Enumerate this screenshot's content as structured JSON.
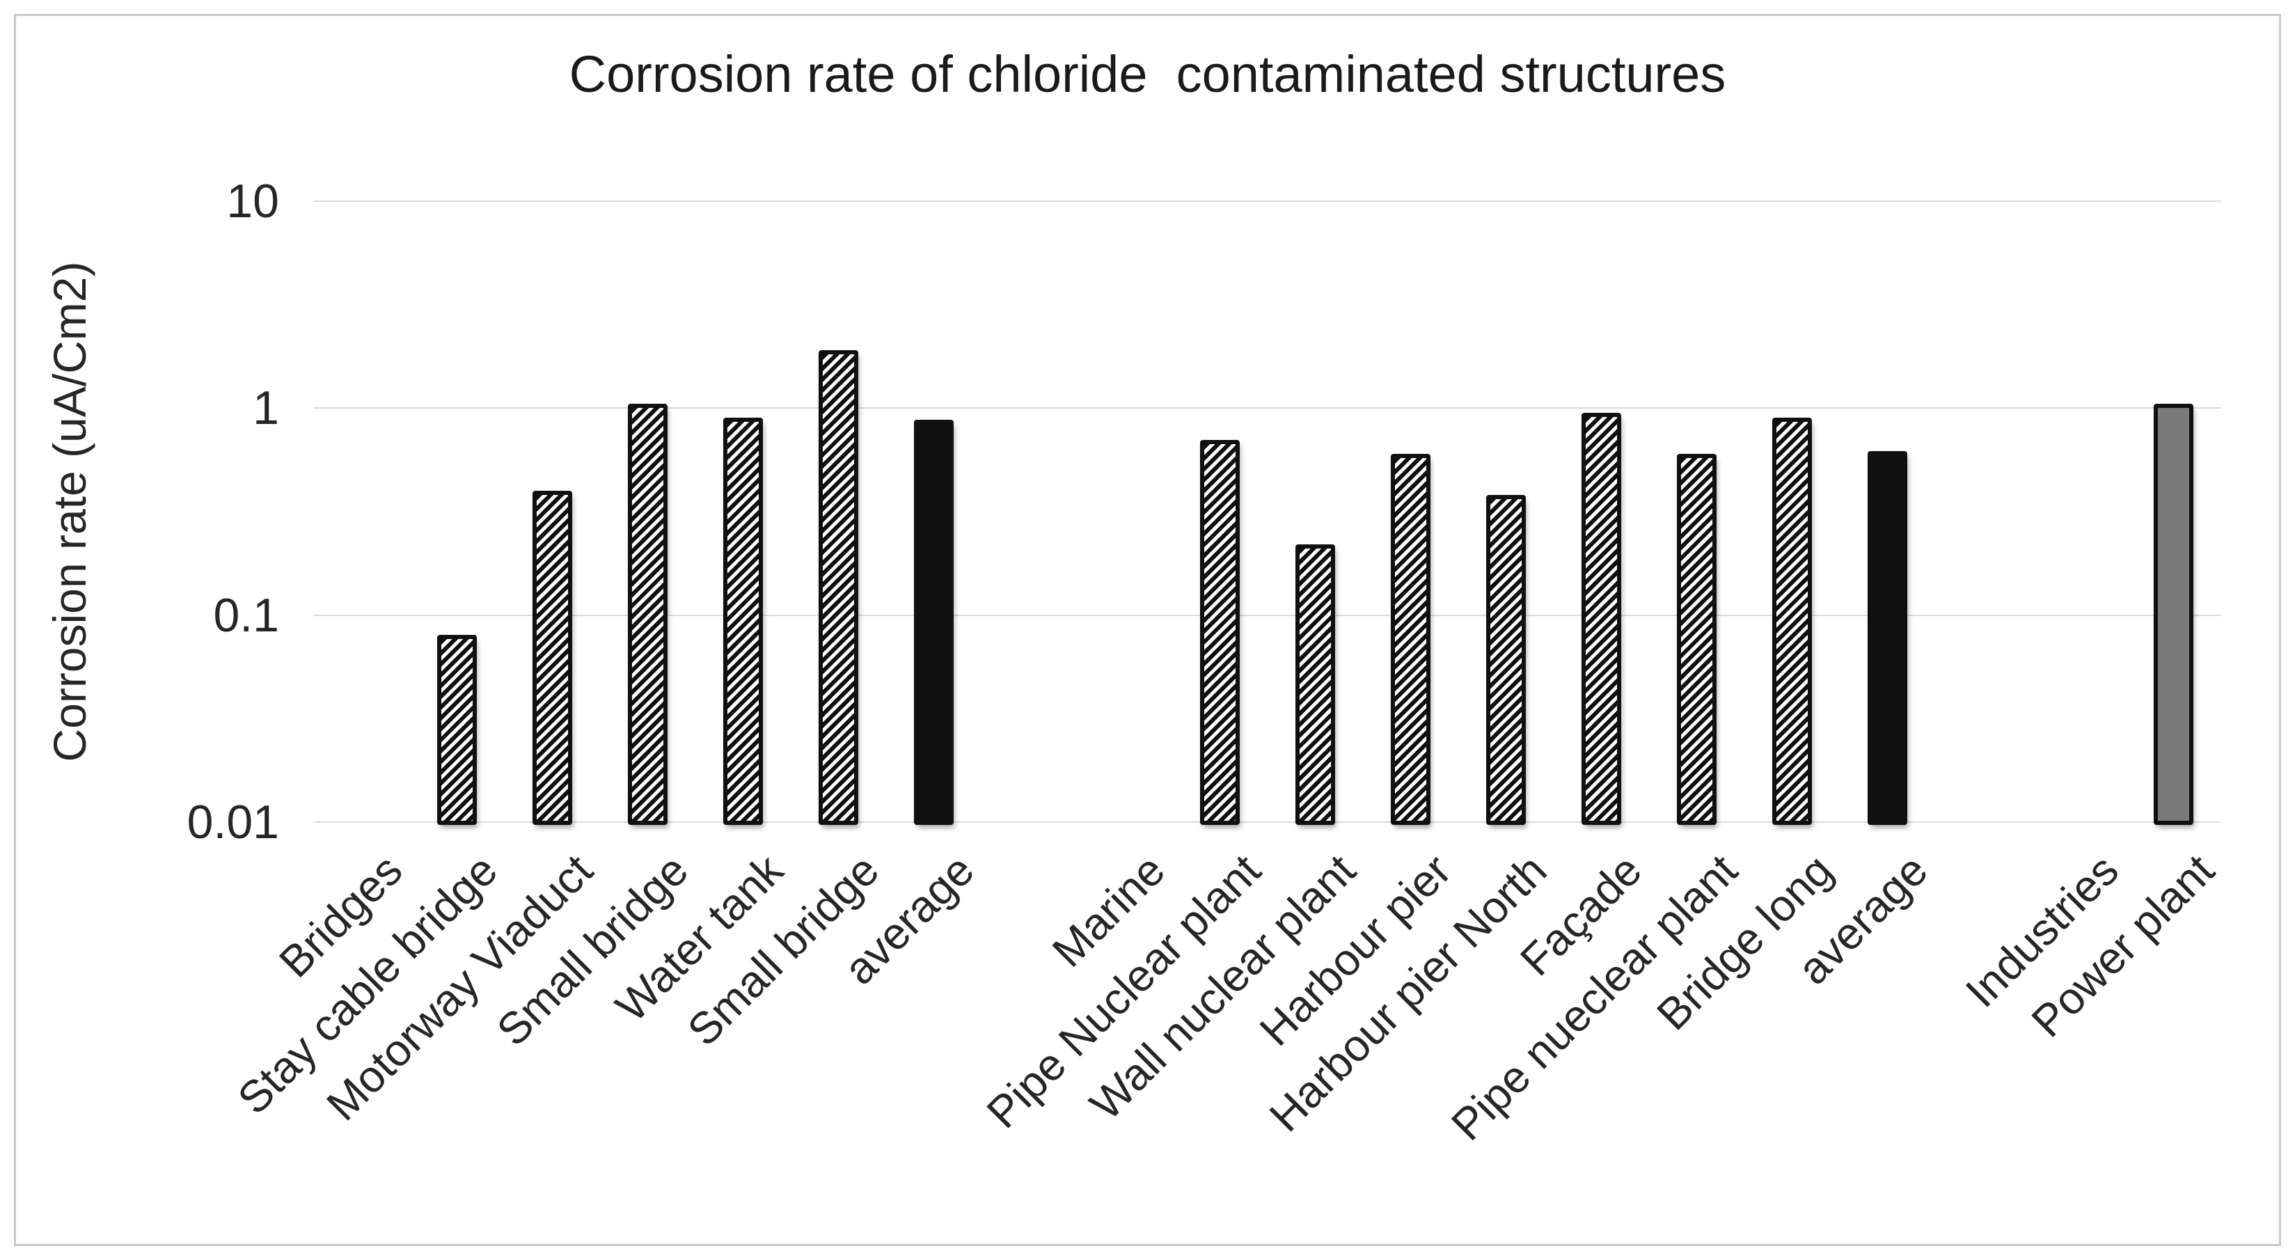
{
  "colors": {
    "text": "#262626",
    "title_text": "#1a1a1a",
    "gridline": "#d9d9d9",
    "frame_border": "#c9c9c9",
    "bar_border": "#101010",
    "hatch_background": "#101010",
    "hatch_stripe": "#ffffff",
    "solid_fill": "#101010",
    "gray_fill": "#7a7a7a",
    "background": "#ffffff"
  },
  "chart_data": {
    "type": "bar",
    "title": "Corrosion rate of chloride  contaminated structures",
    "xlabel": "",
    "ylabel": "Corrosion rate (uA/Cm2)",
    "y_scale": "log",
    "ylim": [
      0.01,
      10
    ],
    "y_ticks": [
      "10",
      "1",
      "0.1",
      "0.01"
    ],
    "grid": true,
    "legend": false,
    "categories": [
      "Bridges",
      "Stay cable bridge",
      "Motorway Viaduct",
      "Small bridge",
      "Water tank",
      "Small bridge",
      "average",
      "",
      "Marine",
      "Pipe Nuclear plant",
      "Wall nuclear plant",
      "Harbour pier",
      "Harbour pier North",
      "Façade",
      "Pipe nueclear plant",
      "Bridge long",
      "average",
      "",
      "Industries",
      "Power plant"
    ],
    "values": [
      null,
      0.08,
      0.4,
      1.05,
      0.9,
      1.9,
      0.88,
      null,
      null,
      0.7,
      0.22,
      0.6,
      0.38,
      0.95,
      0.6,
      0.9,
      0.62,
      null,
      null,
      1.05
    ],
    "bar_styles": [
      null,
      "hatched",
      "hatched",
      "hatched",
      "hatched",
      "hatched",
      "solid",
      null,
      null,
      "hatched",
      "hatched",
      "hatched",
      "hatched",
      "hatched",
      "hatched",
      "hatched",
      "solid",
      null,
      null,
      "gray"
    ],
    "group_headers": [
      "Bridges",
      "Marine",
      "Industries"
    ]
  }
}
